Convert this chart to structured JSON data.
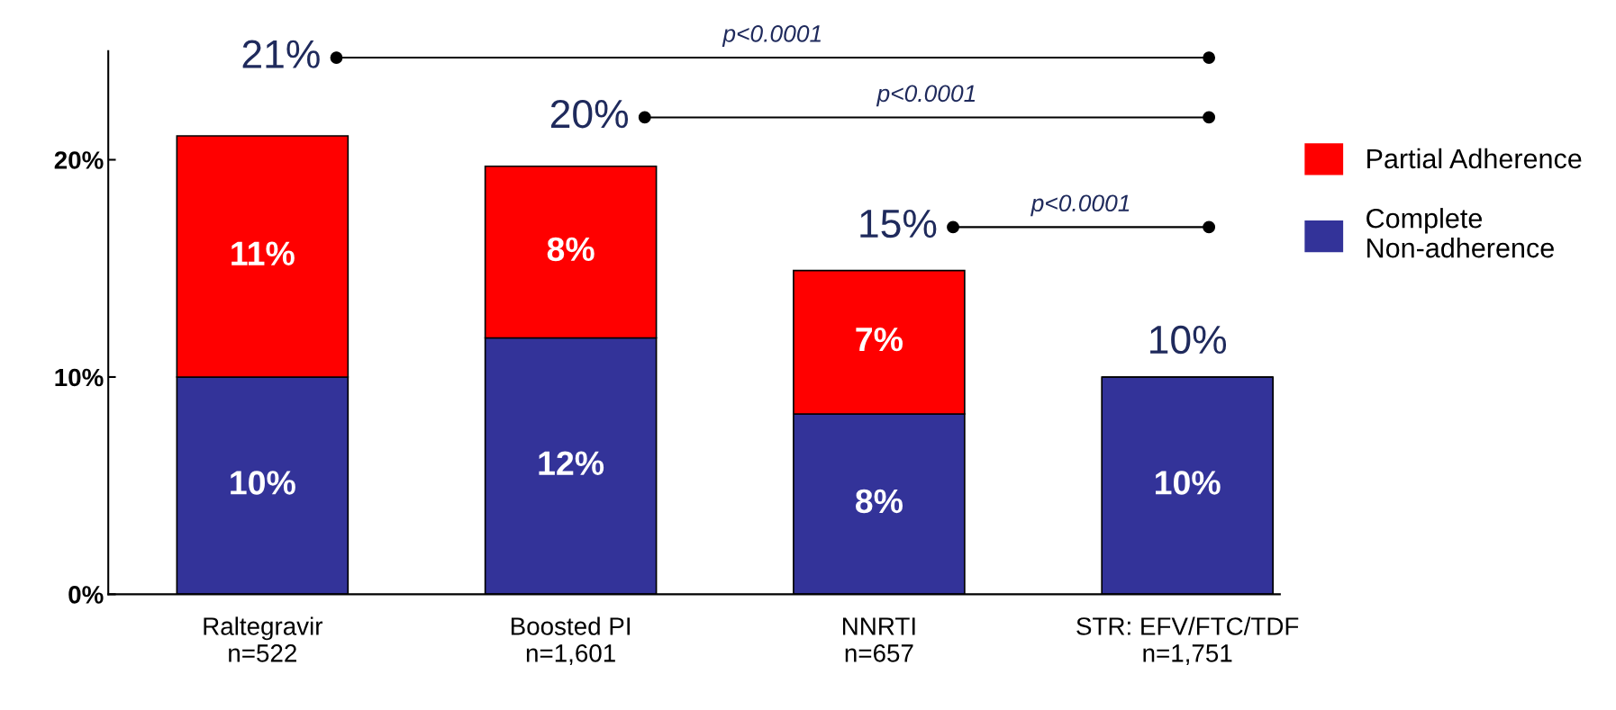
{
  "chart_data": {
    "type": "bar",
    "stacked": true,
    "categories": [
      "Raltegravir\nn=522",
      "Boosted PI\nn=1,601",
      "NNRTI\nn=657",
      "STR: EFV/FTC/TDF\nn=1,751"
    ],
    "series": [
      {
        "name": "Complete\nNon-adherence",
        "color": "#333399",
        "values": [
          10.0,
          11.8,
          8.3,
          10.0
        ],
        "value_labels": [
          "10%",
          "12%",
          "8%",
          "10%"
        ]
      },
      {
        "name": "Partial Adherence",
        "color": "#ff0000",
        "values": [
          11.1,
          7.9,
          6.6,
          null
        ],
        "value_labels": [
          "11%",
          "8%",
          "7%",
          null
        ]
      }
    ],
    "totals": [
      "21%",
      "20%",
      "15%",
      "10%"
    ],
    "ylim": [
      0,
      25
    ],
    "yticks": [
      {
        "value": 0,
        "label": "0%"
      },
      {
        "value": 10,
        "label": "10%"
      },
      {
        "value": 20,
        "label": "20%"
      }
    ],
    "annotations": [
      "p<0.0001",
      "p<0.0001",
      "p<0.0001"
    ],
    "legend": "right",
    "grid": false
  }
}
